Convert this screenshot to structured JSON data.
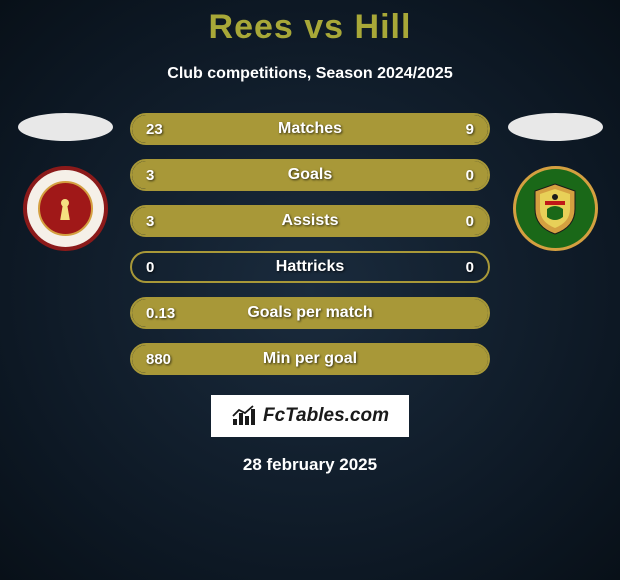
{
  "title": "Rees vs Hill",
  "subtitle": "Club competitions, Season 2024/2025",
  "date": "28 february 2025",
  "brand": "FcTables.com",
  "colors": {
    "accent": "#a89838",
    "title": "#a8a838",
    "text": "#ffffff",
    "badge_left_bg": "#f5f0e8",
    "badge_left_ring": "#8b1a1a",
    "badge_left_inner": "#a01818",
    "badge_right_bg": "#1a6818",
    "badge_right_ring": "#d4a040"
  },
  "stats": [
    {
      "label": "Matches",
      "left_val": "23",
      "right_val": "9",
      "left_pct": 72,
      "right_pct": 28
    },
    {
      "label": "Goals",
      "left_val": "3",
      "right_val": "0",
      "left_pct": 100,
      "right_pct": 0
    },
    {
      "label": "Assists",
      "left_val": "3",
      "right_val": "0",
      "left_pct": 100,
      "right_pct": 0
    },
    {
      "label": "Hattricks",
      "left_val": "0",
      "right_val": "0",
      "left_pct": 0,
      "right_pct": 0
    },
    {
      "label": "Goals per match",
      "left_val": "0.13",
      "right_val": "",
      "left_pct": 100,
      "right_pct": 0
    },
    {
      "label": "Min per goal",
      "left_val": "880",
      "right_val": "",
      "left_pct": 100,
      "right_pct": 0
    }
  ]
}
